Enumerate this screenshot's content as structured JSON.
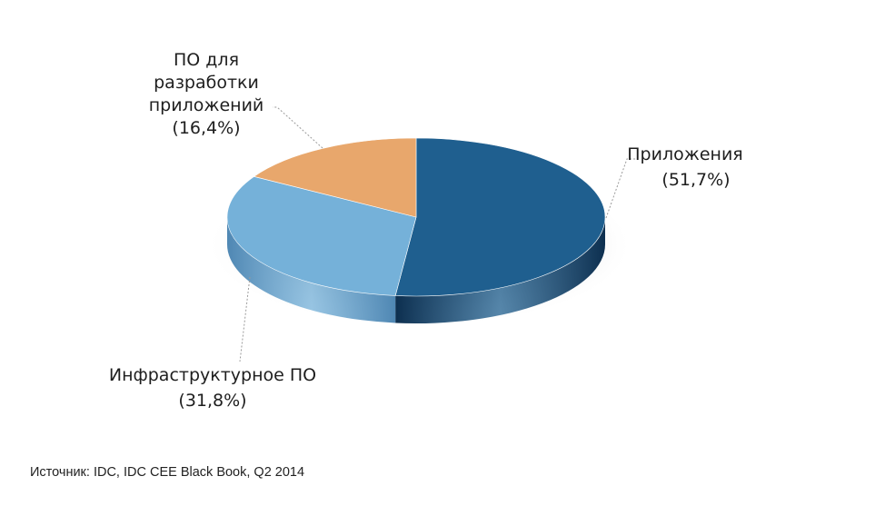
{
  "chart_data": {
    "type": "pie",
    "style": "3d",
    "slices": [
      {
        "label_lines": [
          "Приложения"
        ],
        "value": 51.7,
        "value_text": "(51,7%)",
        "color": "#1f5f8f",
        "side_color": "#0d2f4f"
      },
      {
        "label_lines": [
          "Инфраструктурное ПО"
        ],
        "value": 31.8,
        "value_text": "(31,8%)",
        "color": "#75b1d9",
        "side_color": "#4f87b3"
      },
      {
        "label_lines": [
          "ПО для",
          "разработки",
          "приложений"
        ],
        "value": 16.4,
        "value_text": "(16,4%)",
        "color": "#e8a76c",
        "side_color": "#c07a3e"
      }
    ],
    "legend": "none"
  },
  "source": "Источник: IDC, IDC CEE Black Book, Q2 2014"
}
